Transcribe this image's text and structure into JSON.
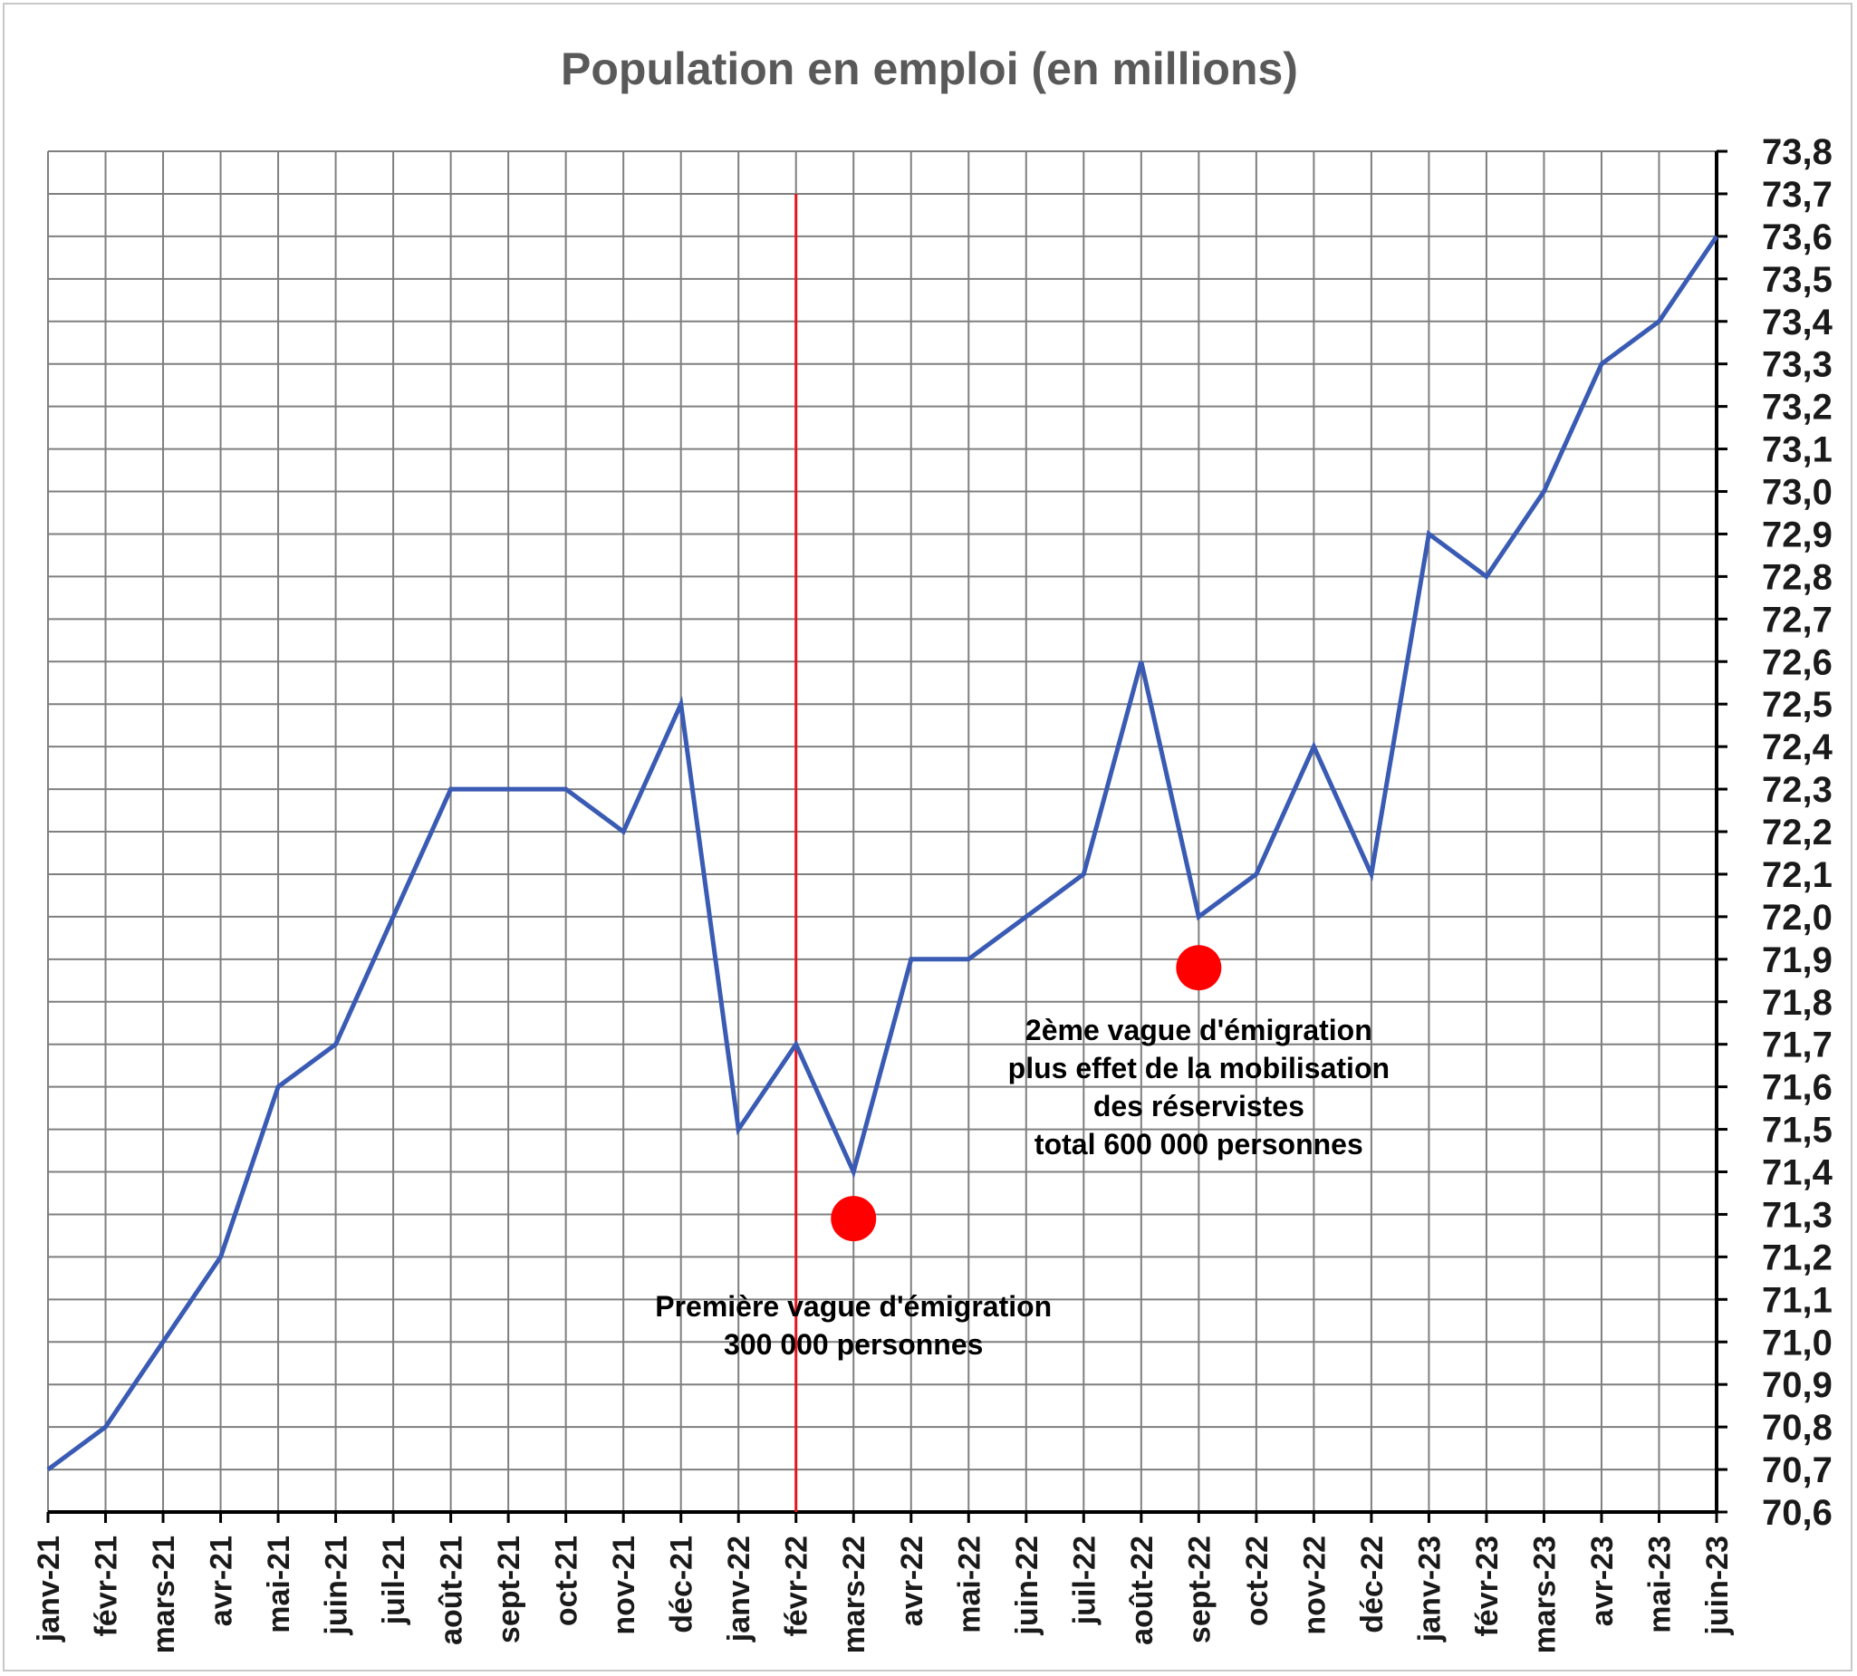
{
  "chart_data": {
    "type": "line",
    "title": "Population en emploi (en millions)",
    "xlabel": "",
    "ylabel": "",
    "ylim": [
      70.6,
      73.8
    ],
    "y_tick_step": 0.1,
    "y_axis_side": "right",
    "grid": true,
    "line_color": "#3a5bb4",
    "marker_line_color": "#e8141a",
    "dot_color": "#ff0000",
    "categories": [
      "janv-21",
      "févr-21",
      "mars-21",
      "avr-21",
      "mai-21",
      "juin-21",
      "juil-21",
      "août-21",
      "sept-21",
      "oct-21",
      "nov-21",
      "déc-21",
      "janv-22",
      "févr-22",
      "mars-22",
      "avr-22",
      "mai-22",
      "juin-22",
      "juil-22",
      "août-22",
      "sept-22",
      "oct-22",
      "nov-22",
      "déc-22",
      "janv-23",
      "févr-23",
      "mars-23",
      "avr-23",
      "mai-23",
      "juin-23"
    ],
    "y_tick_labels": [
      "70,6",
      "70,7",
      "70,8",
      "70,9",
      "71,0",
      "71,1",
      "71,2",
      "71,3",
      "71,4",
      "71,5",
      "71,6",
      "71,7",
      "71,8",
      "71,9",
      "72,0",
      "72,1",
      "72,2",
      "72,3",
      "72,4",
      "72,5",
      "72,6",
      "72,7",
      "72,8",
      "72,9",
      "73,0",
      "73,1",
      "73,2",
      "73,3",
      "73,4",
      "73,5",
      "73,6",
      "73,7",
      "73,8"
    ],
    "series": [
      {
        "values": [
          70.7,
          70.8,
          71.0,
          71.2,
          71.6,
          71.7,
          72.0,
          72.3,
          72.3,
          72.3,
          72.2,
          72.5,
          71.5,
          71.7,
          71.4,
          71.9,
          71.9,
          72.0,
          72.1,
          72.6,
          72.0,
          72.1,
          72.4,
          72.1,
          72.9,
          72.8,
          73.0,
          73.3,
          73.4,
          73.6
        ]
      }
    ],
    "vertical_marker": {
      "category": "févr-22",
      "y_top": 73.7
    },
    "annotations": [
      {
        "dot": {
          "category": "mars-22",
          "y": 71.29
        },
        "text_anchor": {
          "category": "mars-22",
          "y": 71.06
        },
        "lines": [
          "Première vague d'émigration",
          "300 000 personnes"
        ]
      },
      {
        "dot": {
          "category": "sept-22",
          "y": 71.88
        },
        "text_anchor": {
          "category": "sept-22",
          "y": 71.71
        },
        "lines": [
          "2ème vague d'émigration",
          "plus effet de la mobilisation",
          "des réservistes",
          "total 600 000 personnes"
        ]
      }
    ]
  }
}
